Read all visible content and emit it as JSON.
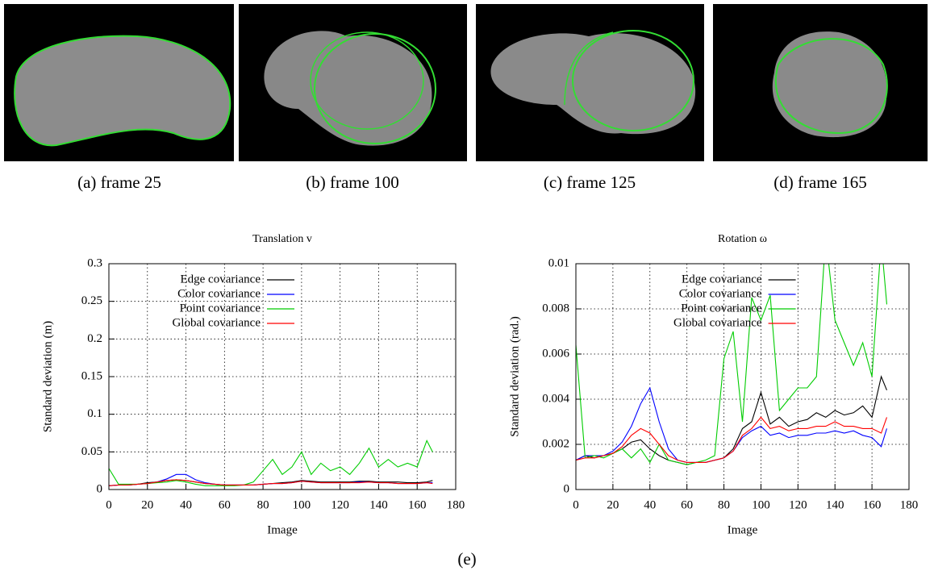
{
  "images": [
    {
      "caption": "(a) frame 25"
    },
    {
      "caption": "(b) frame 100"
    },
    {
      "caption": "(c) frame 125"
    },
    {
      "caption": "(d) frame 165"
    }
  ],
  "figure_label": "(e)",
  "chart_data": [
    {
      "type": "line",
      "title": "Translation v",
      "x_label": "Image",
      "y_label": "Standard deviation (m)",
      "xlim": [
        0,
        180
      ],
      "xticks": [
        0,
        20,
        40,
        60,
        80,
        100,
        120,
        140,
        160,
        180
      ],
      "ylim": [
        0,
        0.3
      ],
      "yticks": [
        0,
        0.05,
        0.1,
        0.15,
        0.2,
        0.25,
        0.3
      ],
      "grid": true,
      "legend": "upper left",
      "x": [
        0,
        5,
        10,
        15,
        20,
        25,
        30,
        35,
        40,
        45,
        50,
        55,
        60,
        65,
        70,
        75,
        80,
        85,
        90,
        95,
        100,
        105,
        110,
        115,
        120,
        125,
        130,
        135,
        140,
        145,
        150,
        155,
        160,
        165,
        168
      ],
      "series": [
        {
          "name": "Edge covariance",
          "color": "#000000",
          "values": [
            0.005,
            0.006,
            0.006,
            0.007,
            0.009,
            0.01,
            0.012,
            0.013,
            0.012,
            0.01,
            0.008,
            0.007,
            0.006,
            0.006,
            0.006,
            0.006,
            0.007,
            0.008,
            0.009,
            0.01,
            0.012,
            0.011,
            0.01,
            0.01,
            0.01,
            0.01,
            0.011,
            0.011,
            0.01,
            0.01,
            0.01,
            0.009,
            0.009,
            0.01,
            0.012
          ]
        },
        {
          "name": "Color covariance",
          "color": "#0000ff",
          "values": [
            0.005,
            0.006,
            0.006,
            0.007,
            0.008,
            0.01,
            0.014,
            0.02,
            0.02,
            0.013,
            0.009,
            0.007,
            0.006,
            0.006,
            0.006,
            0.006,
            0.007,
            0.008,
            0.008,
            0.009,
            0.011,
            0.01,
            0.009,
            0.009,
            0.009,
            0.009,
            0.01,
            0.01,
            0.009,
            0.009,
            0.008,
            0.008,
            0.008,
            0.009,
            0.009
          ]
        },
        {
          "name": "Point covariance",
          "color": "#00cc00",
          "values": [
            0.028,
            0.007,
            0.007,
            0.007,
            0.008,
            0.009,
            0.01,
            0.012,
            0.01,
            0.007,
            0.005,
            0.005,
            0.005,
            0.005,
            0.006,
            0.01,
            0.025,
            0.04,
            0.02,
            0.03,
            0.05,
            0.02,
            0.035,
            0.025,
            0.03,
            0.02,
            0.035,
            0.055,
            0.03,
            0.04,
            0.03,
            0.035,
            0.03,
            0.065,
            0.05
          ]
        },
        {
          "name": "Global covariance",
          "color": "#ff0000",
          "values": [
            0.005,
            0.006,
            0.006,
            0.007,
            0.008,
            0.01,
            0.012,
            0.013,
            0.012,
            0.01,
            0.008,
            0.007,
            0.006,
            0.006,
            0.006,
            0.006,
            0.007,
            0.008,
            0.008,
            0.009,
            0.011,
            0.01,
            0.009,
            0.009,
            0.009,
            0.009,
            0.009,
            0.01,
            0.009,
            0.009,
            0.008,
            0.008,
            0.008,
            0.009,
            0.008
          ]
        }
      ]
    },
    {
      "type": "line",
      "title": "Rotation ω",
      "x_label": "Image",
      "y_label": "Standard deviation (rad.)",
      "xlim": [
        0,
        180
      ],
      "xticks": [
        0,
        20,
        40,
        60,
        80,
        100,
        120,
        140,
        160,
        180
      ],
      "ylim": [
        0,
        0.01
      ],
      "yticks": [
        0,
        0.002,
        0.004,
        0.006,
        0.008,
        0.01
      ],
      "grid": true,
      "legend": "upper center",
      "x": [
        0,
        5,
        10,
        15,
        20,
        25,
        30,
        35,
        40,
        45,
        50,
        55,
        60,
        65,
        70,
        75,
        80,
        85,
        90,
        95,
        100,
        105,
        110,
        115,
        120,
        125,
        130,
        135,
        140,
        145,
        150,
        155,
        160,
        165,
        168
      ],
      "series": [
        {
          "name": "Edge covariance",
          "color": "#000000",
          "values": [
            0.0013,
            0.0015,
            0.0014,
            0.0015,
            0.0016,
            0.0018,
            0.0021,
            0.0022,
            0.0018,
            0.0015,
            0.0013,
            0.0012,
            0.0011,
            0.0012,
            0.0012,
            0.0013,
            0.0014,
            0.0018,
            0.0027,
            0.003,
            0.0043,
            0.0029,
            0.0032,
            0.0028,
            0.003,
            0.0031,
            0.0034,
            0.0032,
            0.0035,
            0.0033,
            0.0034,
            0.0037,
            0.0032,
            0.005,
            0.0044
          ]
        },
        {
          "name": "Color covariance",
          "color": "#0000ff",
          "values": [
            0.0013,
            0.0015,
            0.0015,
            0.0015,
            0.0017,
            0.0021,
            0.0028,
            0.0038,
            0.0045,
            0.003,
            0.0018,
            0.0013,
            0.0012,
            0.0012,
            0.0012,
            0.0013,
            0.0014,
            0.0017,
            0.0023,
            0.0026,
            0.0028,
            0.0024,
            0.0025,
            0.0023,
            0.0024,
            0.0024,
            0.0025,
            0.0025,
            0.0026,
            0.0025,
            0.0026,
            0.0024,
            0.0023,
            0.0019,
            0.0027
          ]
        },
        {
          "name": "Point covariance",
          "color": "#00cc00",
          "values": [
            0.0064,
            0.0014,
            0.0015,
            0.0014,
            0.0016,
            0.0018,
            0.0014,
            0.0018,
            0.0012,
            0.002,
            0.0013,
            0.0012,
            0.0011,
            0.0012,
            0.0013,
            0.0015,
            0.0058,
            0.007,
            0.003,
            0.0085,
            0.0075,
            0.0086,
            0.0035,
            0.004,
            0.0045,
            0.0045,
            0.005,
            0.0112,
            0.0075,
            0.0065,
            0.0055,
            0.0065,
            0.005,
            0.011,
            0.0082
          ]
        },
        {
          "name": "Global covariance",
          "color": "#ff0000",
          "values": [
            0.0013,
            0.0014,
            0.0014,
            0.0015,
            0.0016,
            0.0019,
            0.0024,
            0.0027,
            0.0025,
            0.002,
            0.0015,
            0.0013,
            0.0012,
            0.0012,
            0.0012,
            0.0013,
            0.0014,
            0.0017,
            0.0024,
            0.0027,
            0.0032,
            0.0027,
            0.0028,
            0.0026,
            0.0027,
            0.0027,
            0.0028,
            0.0028,
            0.003,
            0.0028,
            0.0028,
            0.0027,
            0.0027,
            0.0025,
            0.0032
          ]
        }
      ]
    }
  ]
}
